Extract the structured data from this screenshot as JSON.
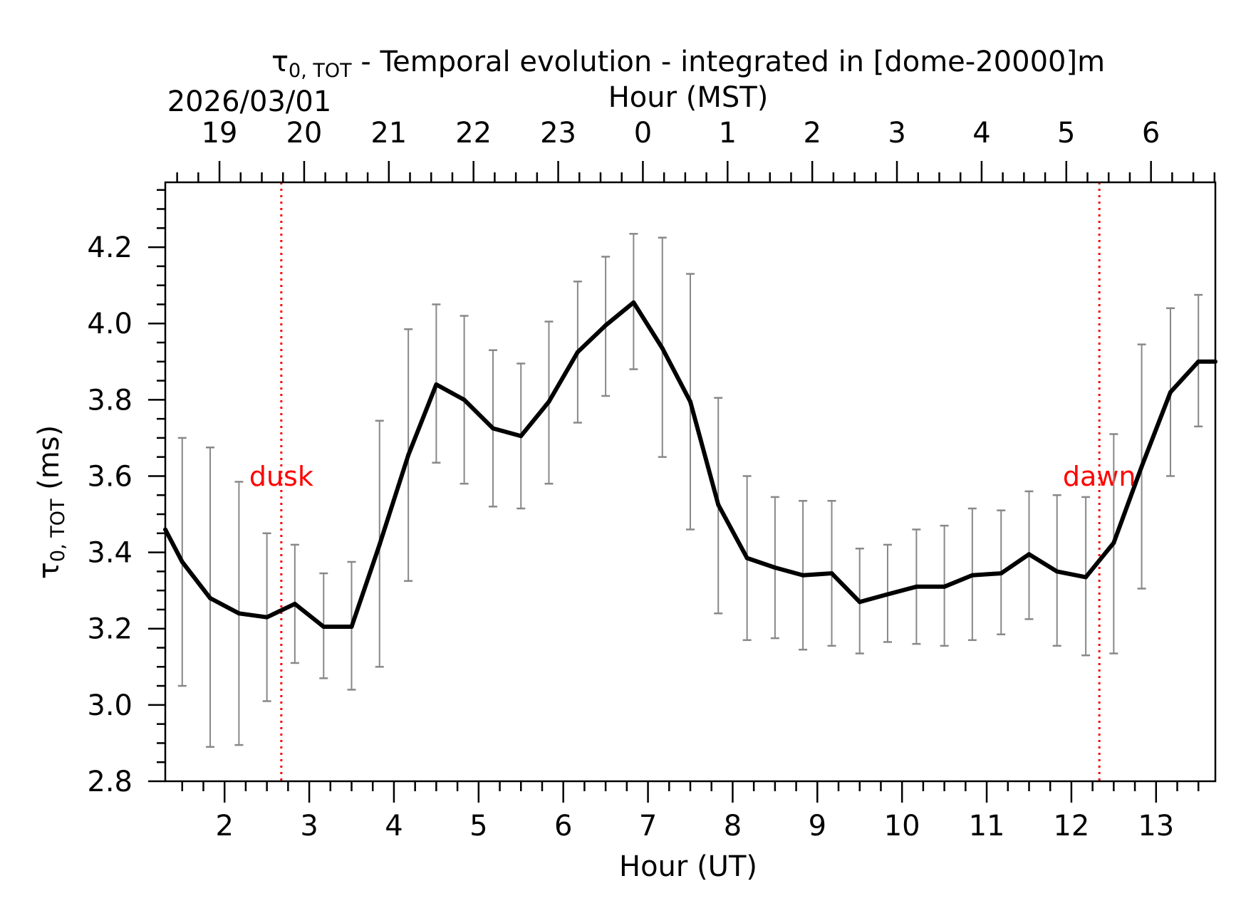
{
  "chart_data": {
    "type": "line",
    "title_symbol": "τ",
    "title_subscript": "0, TOT",
    "title_rest": " - Temporal evolution - integrated in [dome-20000]m",
    "date_label": "2026/03/01",
    "top_xlabel": "Hour (MST)",
    "xlabel": "Hour (UT)",
    "ylabel_symbol": "τ",
    "ylabel_subscript": "0, TOT",
    "ylabel_rest": " (ms)",
    "xlim": [
      1.3,
      13.7
    ],
    "ylim": [
      2.8,
      4.37
    ],
    "x_ticks": [
      2,
      3,
      4,
      5,
      6,
      7,
      8,
      9,
      10,
      11,
      12,
      13
    ],
    "x_tick_labels": [
      "2",
      "3",
      "4",
      "5",
      "6",
      "7",
      "8",
      "9",
      "10",
      "11",
      "12",
      "13"
    ],
    "top_ticks": [
      1.94,
      2.94,
      3.94,
      4.94,
      5.94,
      6.94,
      7.94,
      8.94,
      9.94,
      10.94,
      11.94,
      12.94
    ],
    "top_tick_labels": [
      "19",
      "20",
      "21",
      "22",
      "23",
      "0",
      "1",
      "2",
      "3",
      "4",
      "5",
      "6"
    ],
    "y_ticks": [
      2.8,
      3.0,
      3.2,
      3.4,
      3.6,
      3.8,
      4.0,
      4.2
    ],
    "y_tick_labels": [
      "2.8",
      "3.0",
      "3.2",
      "3.4",
      "3.6",
      "3.8",
      "4.0",
      "4.2"
    ],
    "series": [
      {
        "name": "τ0,TOT",
        "color": "#000000",
        "x": [
          1.3,
          1.5,
          1.83,
          2.17,
          2.5,
          2.83,
          3.17,
          3.5,
          3.83,
          4.17,
          4.5,
          4.83,
          5.17,
          5.5,
          5.83,
          6.17,
          6.5,
          6.83,
          7.17,
          7.5,
          7.83,
          8.17,
          8.5,
          8.83,
          9.17,
          9.5,
          9.83,
          10.17,
          10.5,
          10.83,
          11.17,
          11.5,
          11.83,
          12.17,
          12.5,
          12.83,
          13.17,
          13.5,
          13.7
        ],
        "y": [
          3.46,
          3.375,
          3.28,
          3.24,
          3.23,
          3.265,
          3.205,
          3.205,
          3.42,
          3.655,
          3.84,
          3.8,
          3.725,
          3.705,
          3.795,
          3.925,
          3.995,
          4.055,
          3.935,
          3.795,
          3.525,
          3.385,
          3.36,
          3.34,
          3.345,
          3.27,
          3.29,
          3.31,
          3.31,
          3.34,
          3.345,
          3.395,
          3.35,
          3.335,
          3.425,
          3.625,
          3.82,
          3.9,
          3.9
        ]
      }
    ],
    "error_bars": {
      "color": "#888888",
      "x": [
        1.5,
        1.83,
        2.17,
        2.5,
        2.83,
        3.17,
        3.5,
        3.83,
        4.17,
        4.5,
        4.83,
        5.17,
        5.5,
        5.83,
        6.17,
        6.5,
        6.83,
        7.17,
        7.5,
        7.83,
        8.17,
        8.5,
        8.83,
        9.17,
        9.5,
        9.83,
        10.17,
        10.5,
        10.83,
        11.17,
        11.5,
        11.83,
        12.17,
        12.5,
        12.83,
        13.17,
        13.5
      ],
      "low": [
        3.05,
        2.89,
        2.895,
        3.01,
        3.11,
        3.07,
        3.04,
        3.1,
        3.325,
        3.635,
        3.58,
        3.52,
        3.515,
        3.58,
        3.74,
        3.81,
        3.88,
        3.65,
        3.46,
        3.24,
        3.17,
        3.175,
        3.145,
        3.155,
        3.135,
        3.165,
        3.16,
        3.155,
        3.17,
        3.185,
        3.225,
        3.155,
        3.13,
        3.135,
        3.305,
        3.6,
        3.73
      ],
      "high": [
        3.7,
        3.675,
        3.585,
        3.45,
        3.42,
        3.345,
        3.375,
        3.745,
        3.985,
        4.05,
        4.02,
        3.93,
        3.895,
        4.005,
        4.11,
        4.175,
        4.235,
        4.225,
        4.13,
        3.805,
        3.6,
        3.545,
        3.535,
        3.535,
        3.41,
        3.42,
        3.46,
        3.47,
        3.515,
        3.51,
        3.56,
        3.55,
        3.545,
        3.71,
        3.945,
        4.04,
        4.075
      ]
    },
    "vlines": [
      {
        "x": 2.67,
        "label": "dusk",
        "color": "#ff0000"
      },
      {
        "x": 12.33,
        "label": "dawn",
        "color": "#ff0000"
      }
    ],
    "grid": false,
    "legend": "none"
  }
}
